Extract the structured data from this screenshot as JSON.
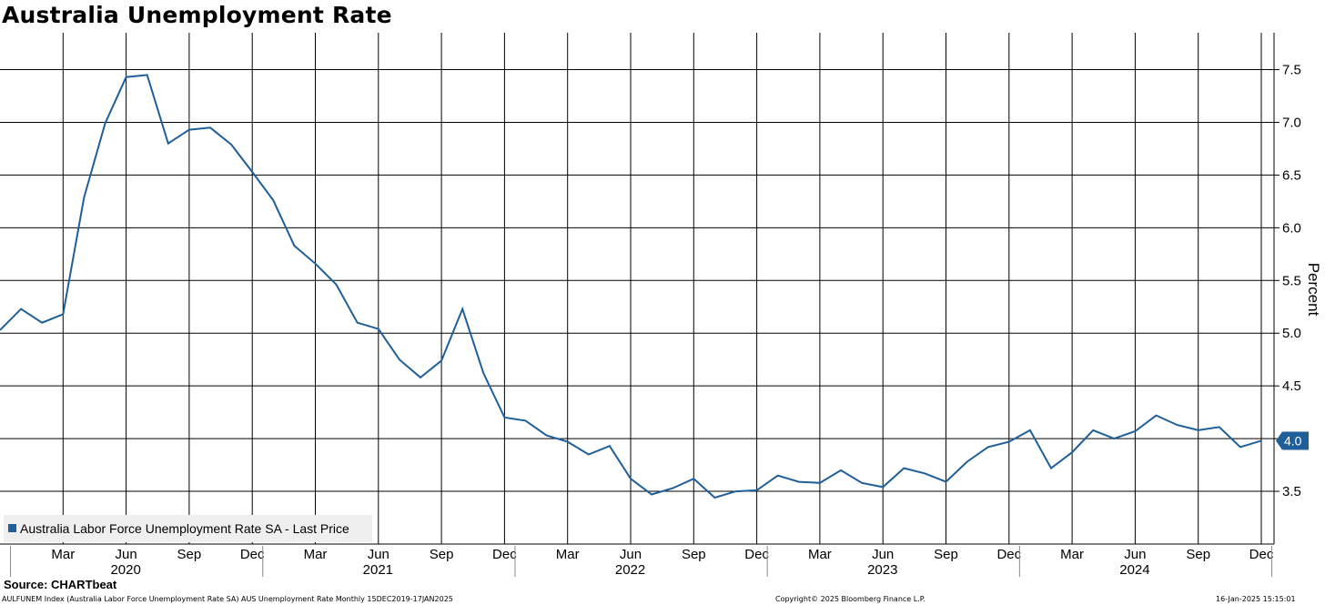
{
  "title": "Australia Unemployment Rate",
  "source": "Source: CHARTbeat",
  "footer": {
    "left": "AULFUNEM Index (Australia Labor Force Unemployment Rate SA) AUS Unemployment Rate  Monthly 15DEC2019-17JAN2025",
    "center": "Copyright© 2025 Bloomberg Finance L.P.",
    "right": "16-Jan-2025 15:15:01"
  },
  "colors": {
    "line": "#1f5f99",
    "grid": "#000000",
    "badge": "#1f5f99"
  },
  "chart_data": {
    "type": "line",
    "ylabel": "Percent",
    "ylim": [
      3.0,
      7.85
    ],
    "yticks": [
      "3.5",
      "4.0",
      "4.5",
      "5.0",
      "5.5",
      "6.0",
      "6.5",
      "7.0",
      "7.5"
    ],
    "grid": true,
    "legend_position": "bottom-left",
    "last_value_label": "4.0",
    "x_month_ticks": [
      "Mar",
      "Jun",
      "Sep",
      "Dec",
      "Mar",
      "Jun",
      "Sep",
      "Dec",
      "Mar",
      "Jun",
      "Sep",
      "Dec",
      "Mar",
      "Jun",
      "Sep",
      "Dec",
      "Mar",
      "Jun",
      "Sep",
      "Dec"
    ],
    "x_year_labels": [
      "2020",
      "2021",
      "2022",
      "2023",
      "2024"
    ],
    "series": [
      {
        "name": "Australia Labor Force Unemployment Rate SA - Last Price",
        "x": [
          "2019-12",
          "2020-01",
          "2020-02",
          "2020-03",
          "2020-04",
          "2020-05",
          "2020-06",
          "2020-07",
          "2020-08",
          "2020-09",
          "2020-10",
          "2020-11",
          "2020-12",
          "2021-01",
          "2021-02",
          "2021-03",
          "2021-04",
          "2021-05",
          "2021-06",
          "2021-07",
          "2021-08",
          "2021-09",
          "2021-10",
          "2021-11",
          "2021-12",
          "2022-01",
          "2022-02",
          "2022-03",
          "2022-04",
          "2022-05",
          "2022-06",
          "2022-07",
          "2022-08",
          "2022-09",
          "2022-10",
          "2022-11",
          "2022-12",
          "2023-01",
          "2023-02",
          "2023-03",
          "2023-04",
          "2023-05",
          "2023-06",
          "2023-07",
          "2023-08",
          "2023-09",
          "2023-10",
          "2023-11",
          "2023-12",
          "2024-01",
          "2024-02",
          "2024-03",
          "2024-04",
          "2024-05",
          "2024-06",
          "2024-07",
          "2024-08",
          "2024-09",
          "2024-10",
          "2024-11",
          "2024-12"
        ],
        "values": [
          5.03,
          5.23,
          5.1,
          5.18,
          6.29,
          6.99,
          7.43,
          7.45,
          6.8,
          6.93,
          6.95,
          6.79,
          6.53,
          6.26,
          5.83,
          5.66,
          5.46,
          5.1,
          5.04,
          4.75,
          4.58,
          4.74,
          5.23,
          4.62,
          4.2,
          4.17,
          4.03,
          3.97,
          3.85,
          3.93,
          3.62,
          3.47,
          3.53,
          3.62,
          3.44,
          3.5,
          3.51,
          3.65,
          3.59,
          3.58,
          3.7,
          3.58,
          3.54,
          3.72,
          3.67,
          3.59,
          3.78,
          3.92,
          3.97,
          4.08,
          3.72,
          3.87,
          4.08,
          4.0,
          4.07,
          4.22,
          4.13,
          4.08,
          4.11,
          3.92,
          3.98
        ]
      }
    ]
  }
}
